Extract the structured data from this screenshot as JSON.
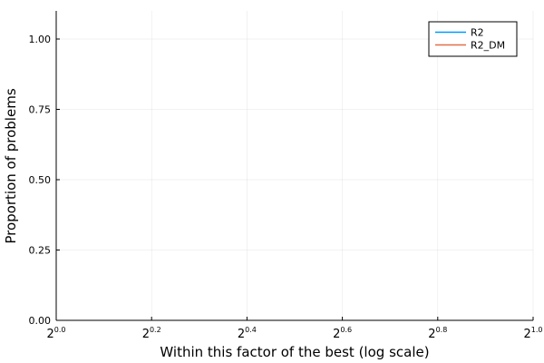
{
  "chart_data": {
    "type": "line",
    "title": "",
    "xlabel": "Within this factor of the best (log scale)",
    "ylabel": "Proportion of problems",
    "x_scale": "log2",
    "x_tick_base": "2",
    "x_ticks": [
      {
        "exponent": "0.0"
      },
      {
        "exponent": "0.2"
      },
      {
        "exponent": "0.4"
      },
      {
        "exponent": "0.6"
      },
      {
        "exponent": "0.8"
      },
      {
        "exponent": "1.0"
      }
    ],
    "y_ticks": [
      "0.00",
      "0.25",
      "0.50",
      "0.75",
      "1.00"
    ],
    "ylim": [
      0,
      1.1
    ],
    "grid": true,
    "legend_position": "top-right",
    "series": [
      {
        "name": "R2",
        "color": "#009AFA",
        "values": []
      },
      {
        "name": "R2_DM",
        "color": "#E36F47",
        "values": []
      }
    ]
  }
}
